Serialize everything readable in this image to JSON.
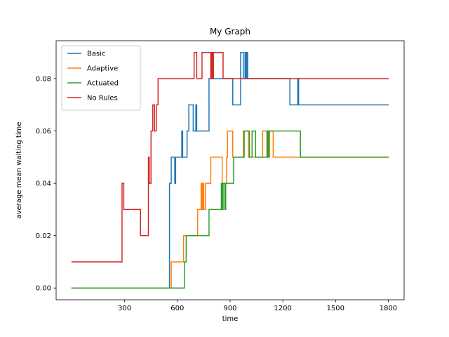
{
  "chart_data": {
    "type": "line",
    "title": "My Graph",
    "xlabel": "time",
    "ylabel": "average mean waiting time",
    "xlim": [
      -90,
      1890
    ],
    "ylim": [
      -0.0045,
      0.0945
    ],
    "xticks": [
      300,
      600,
      900,
      1200,
      1500,
      1800
    ],
    "yticks": [
      0.0,
      0.02,
      0.04,
      0.06,
      0.08
    ],
    "ytick_labels": [
      "0.00",
      "0.02",
      "0.04",
      "0.06",
      "0.08"
    ],
    "step": true,
    "grid": false,
    "legend_position": "top-left",
    "series": [
      {
        "name": "Basic",
        "color": "#1f77b4",
        "points": [
          [
            0,
            0.0
          ],
          [
            555,
            0.0
          ],
          [
            555,
            0.04
          ],
          [
            565,
            0.04
          ],
          [
            565,
            0.05
          ],
          [
            585,
            0.05
          ],
          [
            585,
            0.04
          ],
          [
            590,
            0.04
          ],
          [
            590,
            0.05
          ],
          [
            625,
            0.05
          ],
          [
            625,
            0.06
          ],
          [
            630,
            0.06
          ],
          [
            630,
            0.05
          ],
          [
            655,
            0.05
          ],
          [
            655,
            0.06
          ],
          [
            665,
            0.06
          ],
          [
            665,
            0.07
          ],
          [
            690,
            0.07
          ],
          [
            690,
            0.06
          ],
          [
            705,
            0.06
          ],
          [
            705,
            0.07
          ],
          [
            710,
            0.07
          ],
          [
            710,
            0.06
          ],
          [
            780,
            0.06
          ],
          [
            780,
            0.08
          ],
          [
            915,
            0.08
          ],
          [
            915,
            0.07
          ],
          [
            960,
            0.07
          ],
          [
            960,
            0.09
          ],
          [
            975,
            0.09
          ],
          [
            975,
            0.08
          ],
          [
            985,
            0.08
          ],
          [
            985,
            0.09
          ],
          [
            990,
            0.09
          ],
          [
            990,
            0.08
          ],
          [
            995,
            0.08
          ],
          [
            995,
            0.09
          ],
          [
            1000,
            0.09
          ],
          [
            1000,
            0.08
          ],
          [
            1240,
            0.08
          ],
          [
            1240,
            0.07
          ],
          [
            1285,
            0.07
          ],
          [
            1285,
            0.08
          ],
          [
            1290,
            0.08
          ],
          [
            1290,
            0.07
          ],
          [
            1800,
            0.07
          ]
        ]
      },
      {
        "name": "Adaptive",
        "color": "#ff7f0e",
        "points": [
          [
            0,
            0.0
          ],
          [
            565,
            0.0
          ],
          [
            565,
            0.01
          ],
          [
            635,
            0.01
          ],
          [
            635,
            0.02
          ],
          [
            715,
            0.02
          ],
          [
            715,
            0.03
          ],
          [
            735,
            0.03
          ],
          [
            735,
            0.04
          ],
          [
            740,
            0.04
          ],
          [
            740,
            0.03
          ],
          [
            745,
            0.03
          ],
          [
            745,
            0.04
          ],
          [
            750,
            0.04
          ],
          [
            750,
            0.03
          ],
          [
            760,
            0.03
          ],
          [
            760,
            0.04
          ],
          [
            790,
            0.04
          ],
          [
            790,
            0.05
          ],
          [
            855,
            0.05
          ],
          [
            855,
            0.04
          ],
          [
            880,
            0.04
          ],
          [
            880,
            0.05
          ],
          [
            885,
            0.05
          ],
          [
            885,
            0.06
          ],
          [
            915,
            0.06
          ],
          [
            915,
            0.05
          ],
          [
            975,
            0.05
          ],
          [
            975,
            0.06
          ],
          [
            1005,
            0.06
          ],
          [
            1005,
            0.05
          ],
          [
            1085,
            0.05
          ],
          [
            1085,
            0.06
          ],
          [
            1110,
            0.06
          ],
          [
            1110,
            0.05
          ],
          [
            1125,
            0.05
          ],
          [
            1125,
            0.06
          ],
          [
            1145,
            0.06
          ],
          [
            1145,
            0.05
          ],
          [
            1300,
            0.05
          ],
          [
            1300,
            0.05
          ],
          [
            1800,
            0.05
          ]
        ]
      },
      {
        "name": "Actuated",
        "color": "#2ca02c",
        "points": [
          [
            0,
            0.0
          ],
          [
            640,
            0.0
          ],
          [
            640,
            0.01
          ],
          [
            650,
            0.01
          ],
          [
            650,
            0.02
          ],
          [
            780,
            0.02
          ],
          [
            780,
            0.03
          ],
          [
            850,
            0.03
          ],
          [
            850,
            0.04
          ],
          [
            855,
            0.04
          ],
          [
            855,
            0.03
          ],
          [
            860,
            0.03
          ],
          [
            860,
            0.04
          ],
          [
            870,
            0.04
          ],
          [
            870,
            0.03
          ],
          [
            875,
            0.03
          ],
          [
            875,
            0.04
          ],
          [
            920,
            0.04
          ],
          [
            920,
            0.05
          ],
          [
            980,
            0.05
          ],
          [
            980,
            0.06
          ],
          [
            1010,
            0.06
          ],
          [
            1010,
            0.05
          ],
          [
            1025,
            0.05
          ],
          [
            1025,
            0.06
          ],
          [
            1045,
            0.06
          ],
          [
            1045,
            0.05
          ],
          [
            1110,
            0.05
          ],
          [
            1110,
            0.06
          ],
          [
            1115,
            0.06
          ],
          [
            1115,
            0.05
          ],
          [
            1120,
            0.05
          ],
          [
            1120,
            0.06
          ],
          [
            1300,
            0.06
          ],
          [
            1300,
            0.05
          ],
          [
            1800,
            0.05
          ]
        ]
      },
      {
        "name": "No Rules",
        "color": "#d62728",
        "points": [
          [
            0,
            0.01
          ],
          [
            285,
            0.01
          ],
          [
            285,
            0.04
          ],
          [
            295,
            0.04
          ],
          [
            295,
            0.03
          ],
          [
            390,
            0.03
          ],
          [
            390,
            0.02
          ],
          [
            435,
            0.02
          ],
          [
            435,
            0.05
          ],
          [
            440,
            0.05
          ],
          [
            440,
            0.04
          ],
          [
            450,
            0.04
          ],
          [
            450,
            0.06
          ],
          [
            460,
            0.06
          ],
          [
            460,
            0.07
          ],
          [
            470,
            0.07
          ],
          [
            470,
            0.06
          ],
          [
            480,
            0.06
          ],
          [
            480,
            0.07
          ],
          [
            490,
            0.07
          ],
          [
            490,
            0.08
          ],
          [
            695,
            0.08
          ],
          [
            695,
            0.09
          ],
          [
            710,
            0.09
          ],
          [
            710,
            0.08
          ],
          [
            740,
            0.08
          ],
          [
            740,
            0.09
          ],
          [
            790,
            0.09
          ],
          [
            790,
            0.08
          ],
          [
            795,
            0.08
          ],
          [
            795,
            0.09
          ],
          [
            800,
            0.09
          ],
          [
            800,
            0.08
          ],
          [
            805,
            0.08
          ],
          [
            805,
            0.09
          ],
          [
            860,
            0.09
          ],
          [
            860,
            0.08
          ],
          [
            1800,
            0.08
          ]
        ]
      }
    ]
  }
}
